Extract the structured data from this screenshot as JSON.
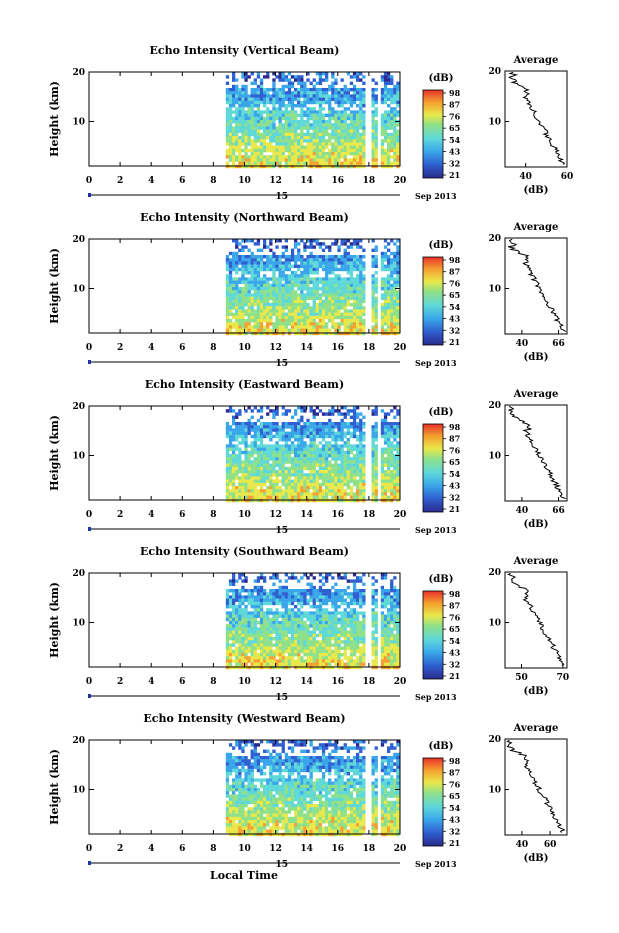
{
  "figure": {
    "xlabel": "Local Time",
    "date_label": "Sep 2013",
    "day_label": "15",
    "unit_label": "(dB)",
    "avg_title": "Average",
    "avg_xlabel": "(dB)",
    "ylabel": "Height (km)"
  },
  "chart_data": [
    {
      "type": "heatmap",
      "title": "Echo Intensity (Vertical Beam)",
      "x_ticks": [
        "0",
        "2",
        "4",
        "6",
        "8",
        "10",
        "12",
        "14",
        "16",
        "18",
        "20"
      ],
      "xlim": [
        0,
        20
      ],
      "y_ticks": [
        "10",
        "20"
      ],
      "ylim": [
        1,
        20
      ],
      "data_start_hour": 8.8,
      "colorbar_ticks": [
        "98",
        "87",
        "76",
        "65",
        "54",
        "43",
        "32",
        "21"
      ],
      "profile": {
        "title": "Average",
        "xlabel": "(dB)",
        "x_ticks": [
          "40",
          "60"
        ],
        "xlim": [
          30,
          60
        ],
        "y_ticks": [
          "10",
          "20"
        ]
      }
    },
    {
      "type": "heatmap",
      "title": "Echo Intensity (Northward Beam)",
      "x_ticks": [
        "0",
        "2",
        "4",
        "6",
        "8",
        "10",
        "12",
        "14",
        "16",
        "18",
        "20"
      ],
      "xlim": [
        0,
        20
      ],
      "y_ticks": [
        "10",
        "20"
      ],
      "ylim": [
        1,
        20
      ],
      "data_start_hour": 8.8,
      "colorbar_ticks": [
        "98",
        "87",
        "76",
        "65",
        "54",
        "43",
        "32",
        "21"
      ],
      "profile": {
        "title": "Average",
        "xlabel": "(dB)",
        "x_ticks": [
          "40",
          "66"
        ],
        "xlim": [
          28,
          72
        ],
        "y_ticks": [
          "10",
          "20"
        ]
      }
    },
    {
      "type": "heatmap",
      "title": "Echo Intensity (Eastward Beam)",
      "x_ticks": [
        "0",
        "2",
        "4",
        "6",
        "8",
        "10",
        "12",
        "14",
        "16",
        "18",
        "20"
      ],
      "xlim": [
        0,
        20
      ],
      "y_ticks": [
        "10",
        "20"
      ],
      "ylim": [
        1,
        20
      ],
      "data_start_hour": 8.8,
      "colorbar_ticks": [
        "98",
        "87",
        "76",
        "65",
        "54",
        "43",
        "32",
        "21"
      ],
      "profile": {
        "title": "Average",
        "xlabel": "(dB)",
        "x_ticks": [
          "40",
          "66"
        ],
        "xlim": [
          28,
          72
        ],
        "y_ticks": [
          "10",
          "20"
        ]
      }
    },
    {
      "type": "heatmap",
      "title": "Echo Intensity (Southward Beam)",
      "x_ticks": [
        "0",
        "2",
        "4",
        "6",
        "8",
        "10",
        "12",
        "14",
        "16",
        "18",
        "20"
      ],
      "xlim": [
        0,
        20
      ],
      "y_ticks": [
        "10",
        "20"
      ],
      "ylim": [
        1,
        20
      ],
      "data_start_hour": 8.8,
      "colorbar_ticks": [
        "98",
        "87",
        "76",
        "65",
        "54",
        "43",
        "32",
        "21"
      ],
      "profile": {
        "title": "Average",
        "xlabel": "(dB)",
        "x_ticks": [
          "50",
          "70"
        ],
        "xlim": [
          42,
          72
        ],
        "y_ticks": [
          "10",
          "20"
        ]
      }
    },
    {
      "type": "heatmap",
      "title": "Echo Intensity (Westward Beam)",
      "x_ticks": [
        "0",
        "2",
        "4",
        "6",
        "8",
        "10",
        "12",
        "14",
        "16",
        "18",
        "20"
      ],
      "xlim": [
        0,
        20
      ],
      "y_ticks": [
        "10",
        "20"
      ],
      "ylim": [
        1,
        20
      ],
      "data_start_hour": 8.8,
      "colorbar_ticks": [
        "98",
        "87",
        "76",
        "65",
        "54",
        "43",
        "32",
        "21"
      ],
      "profile": {
        "title": "Average",
        "xlabel": "(dB)",
        "x_ticks": [
          "40",
          "60"
        ],
        "xlim": [
          28,
          72
        ],
        "y_ticks": [
          "10",
          "20"
        ]
      }
    }
  ]
}
